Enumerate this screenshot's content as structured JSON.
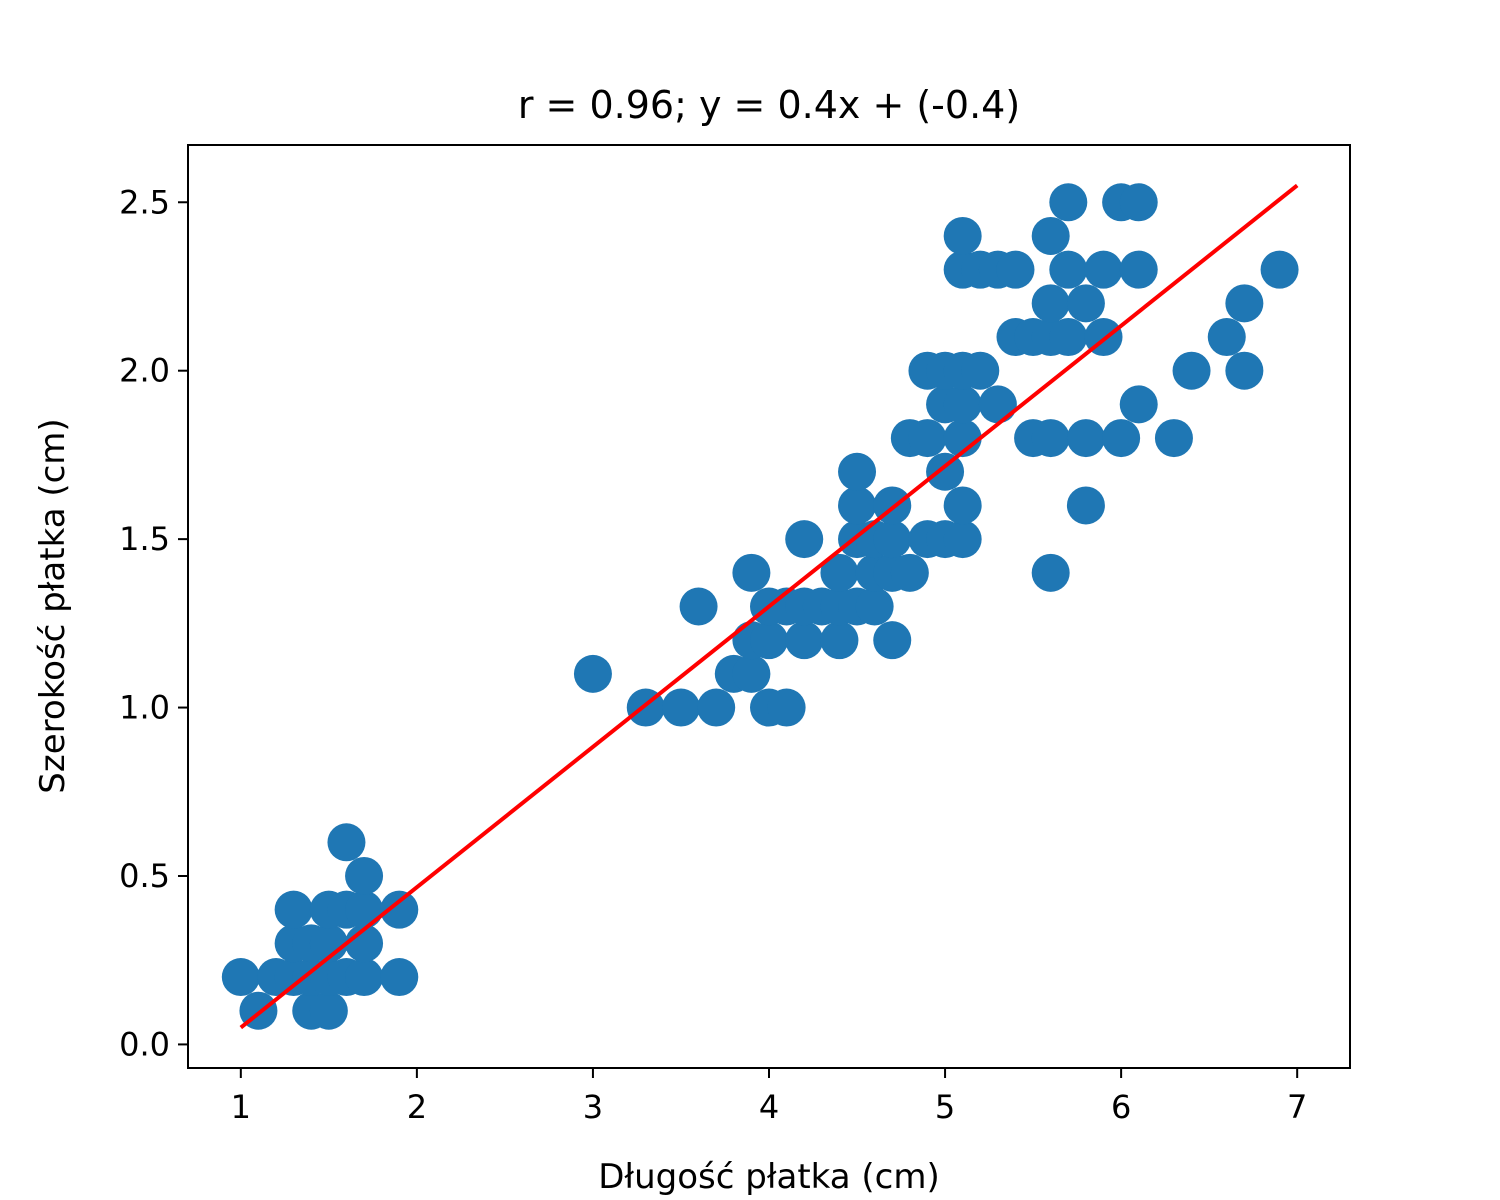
{
  "chart_data": {
    "type": "scatter",
    "title": "r = 0.96; y = 0.4x + (-0.4)",
    "xlabel": "Długość płatka (cm)",
    "ylabel": "Szerokość płatka (cm)",
    "xlim": [
      0.7,
      7.3
    ],
    "ylim": [
      -0.07,
      2.67
    ],
    "x_ticks": [
      1,
      2,
      3,
      4,
      5,
      6,
      7
    ],
    "x_tick_labels": [
      "1",
      "2",
      "3",
      "4",
      "5",
      "6",
      "7"
    ],
    "y_ticks": [
      0.0,
      0.5,
      1.0,
      1.5,
      2.0,
      2.5
    ],
    "y_tick_labels": [
      "0.0",
      "0.5",
      "1.0",
      "1.5",
      "2.0",
      "2.5"
    ],
    "grid": false,
    "legend": "none",
    "series": [
      {
        "kind": "scatter",
        "color": "#1f77b4",
        "points": [
          [
            1.0,
            0.2
          ],
          [
            1.1,
            0.1
          ],
          [
            1.2,
            0.2
          ],
          [
            1.3,
            0.2
          ],
          [
            1.3,
            0.3
          ],
          [
            1.3,
            0.4
          ],
          [
            1.4,
            0.1
          ],
          [
            1.4,
            0.2
          ],
          [
            1.4,
            0.3
          ],
          [
            1.5,
            0.1
          ],
          [
            1.5,
            0.2
          ],
          [
            1.5,
            0.3
          ],
          [
            1.5,
            0.4
          ],
          [
            1.6,
            0.2
          ],
          [
            1.6,
            0.4
          ],
          [
            1.6,
            0.6
          ],
          [
            1.7,
            0.2
          ],
          [
            1.7,
            0.3
          ],
          [
            1.7,
            0.4
          ],
          [
            1.7,
            0.5
          ],
          [
            1.9,
            0.2
          ],
          [
            1.9,
            0.4
          ],
          [
            3.0,
            1.1
          ],
          [
            3.3,
            1.0
          ],
          [
            3.5,
            1.0
          ],
          [
            3.6,
            1.3
          ],
          [
            3.7,
            1.0
          ],
          [
            3.8,
            1.1
          ],
          [
            3.9,
            1.1
          ],
          [
            3.9,
            1.2
          ],
          [
            3.9,
            1.4
          ],
          [
            4.0,
            1.0
          ],
          [
            4.0,
            1.2
          ],
          [
            4.0,
            1.3
          ],
          [
            4.1,
            1.0
          ],
          [
            4.1,
            1.3
          ],
          [
            4.2,
            1.2
          ],
          [
            4.2,
            1.3
          ],
          [
            4.2,
            1.5
          ],
          [
            4.3,
            1.3
          ],
          [
            4.4,
            1.2
          ],
          [
            4.4,
            1.3
          ],
          [
            4.4,
            1.4
          ],
          [
            4.5,
            1.3
          ],
          [
            4.5,
            1.5
          ],
          [
            4.5,
            1.6
          ],
          [
            4.5,
            1.7
          ],
          [
            4.6,
            1.3
          ],
          [
            4.6,
            1.4
          ],
          [
            4.6,
            1.5
          ],
          [
            4.7,
            1.2
          ],
          [
            4.7,
            1.4
          ],
          [
            4.7,
            1.5
          ],
          [
            4.7,
            1.6
          ],
          [
            4.8,
            1.4
          ],
          [
            4.8,
            1.8
          ],
          [
            4.9,
            1.5
          ],
          [
            4.9,
            1.8
          ],
          [
            4.9,
            2.0
          ],
          [
            5.0,
            1.5
          ],
          [
            5.0,
            1.7
          ],
          [
            5.0,
            1.9
          ],
          [
            5.0,
            2.0
          ],
          [
            5.1,
            1.5
          ],
          [
            5.1,
            1.6
          ],
          [
            5.1,
            1.8
          ],
          [
            5.1,
            1.9
          ],
          [
            5.1,
            2.0
          ],
          [
            5.1,
            2.3
          ],
          [
            5.1,
            2.4
          ],
          [
            5.2,
            2.0
          ],
          [
            5.2,
            2.3
          ],
          [
            5.3,
            1.9
          ],
          [
            5.3,
            2.3
          ],
          [
            5.4,
            2.1
          ],
          [
            5.4,
            2.3
          ],
          [
            5.5,
            1.8
          ],
          [
            5.5,
            2.1
          ],
          [
            5.6,
            1.4
          ],
          [
            5.6,
            1.8
          ],
          [
            5.6,
            2.1
          ],
          [
            5.6,
            2.2
          ],
          [
            5.6,
            2.4
          ],
          [
            5.7,
            2.1
          ],
          [
            5.7,
            2.3
          ],
          [
            5.7,
            2.5
          ],
          [
            5.8,
            1.6
          ],
          [
            5.8,
            1.8
          ],
          [
            5.8,
            2.2
          ],
          [
            5.9,
            2.1
          ],
          [
            5.9,
            2.3
          ],
          [
            6.0,
            1.8
          ],
          [
            6.0,
            2.5
          ],
          [
            6.1,
            1.9
          ],
          [
            6.1,
            2.3
          ],
          [
            6.1,
            2.5
          ],
          [
            6.3,
            1.8
          ],
          [
            6.4,
            2.0
          ],
          [
            6.6,
            2.1
          ],
          [
            6.7,
            2.0
          ],
          [
            6.7,
            2.2
          ],
          [
            6.9,
            2.3
          ]
        ]
      },
      {
        "kind": "line",
        "color": "#ff0000",
        "points": [
          [
            1.0,
            0.05
          ],
          [
            7.0,
            2.55
          ]
        ]
      }
    ]
  }
}
